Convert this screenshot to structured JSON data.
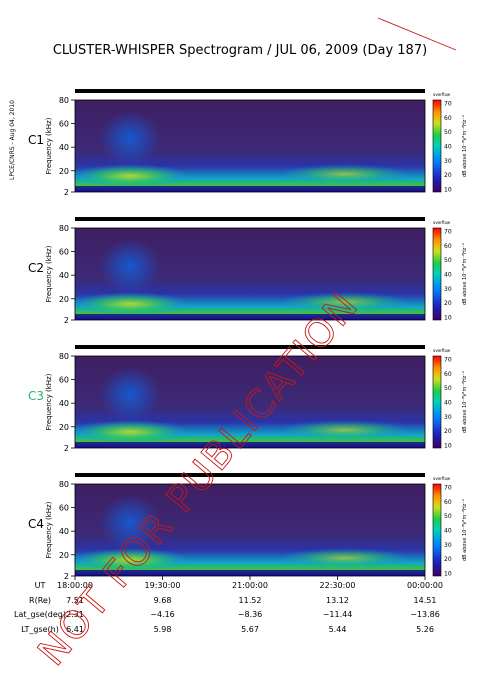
{
  "chart_data": {
    "type": "heatmap",
    "title": "CLUSTER-WHISPER Spectrogram / JUL 06, 2009 (Day 187)",
    "side_label": "LPCE/CNRS - Aug 04, 2010",
    "watermark": "NOT FOR PUBLICATION",
    "ylabel": "Frequency (kHz)",
    "y_ticks": [
      "80",
      "60",
      "40",
      "20",
      "2"
    ],
    "ylim": [
      2,
      80
    ],
    "colorbar": {
      "label": "dB above 10⁻⁸V²m⁻²Hz⁻¹",
      "header": "overflow",
      "ticks": [
        "70",
        "60",
        "50",
        "40",
        "30",
        "20",
        "10"
      ],
      "range": [
        10,
        70
      ]
    },
    "panels": [
      {
        "name": "C1",
        "name_color": "#000000"
      },
      {
        "name": "C2",
        "name_color": "#000000"
      },
      {
        "name": "C3",
        "name_color": "#2bb673"
      },
      {
        "name": "C4",
        "name_color": "#000000"
      }
    ],
    "x_ticks": [
      "18:00:00",
      "19:30:00",
      "21:00:00",
      "22:30:00",
      "00:00:00"
    ],
    "xlim": [
      "18:00:00",
      "00:00:00"
    ],
    "ephemeris": {
      "labels": [
        "UT",
        "R(Re)",
        "Lat_gse(deg)",
        "LT_gse(h)"
      ],
      "rows": [
        [
          "7.51",
          "9.68",
          "11.52",
          "13.12",
          "14.51"
        ],
        [
          "2.31",
          "−4.16",
          "−8.36",
          "−11.44",
          "−13.86"
        ],
        [
          "6.41",
          "5.98",
          "5.67",
          "5.44",
          "5.26"
        ]
      ]
    }
  }
}
